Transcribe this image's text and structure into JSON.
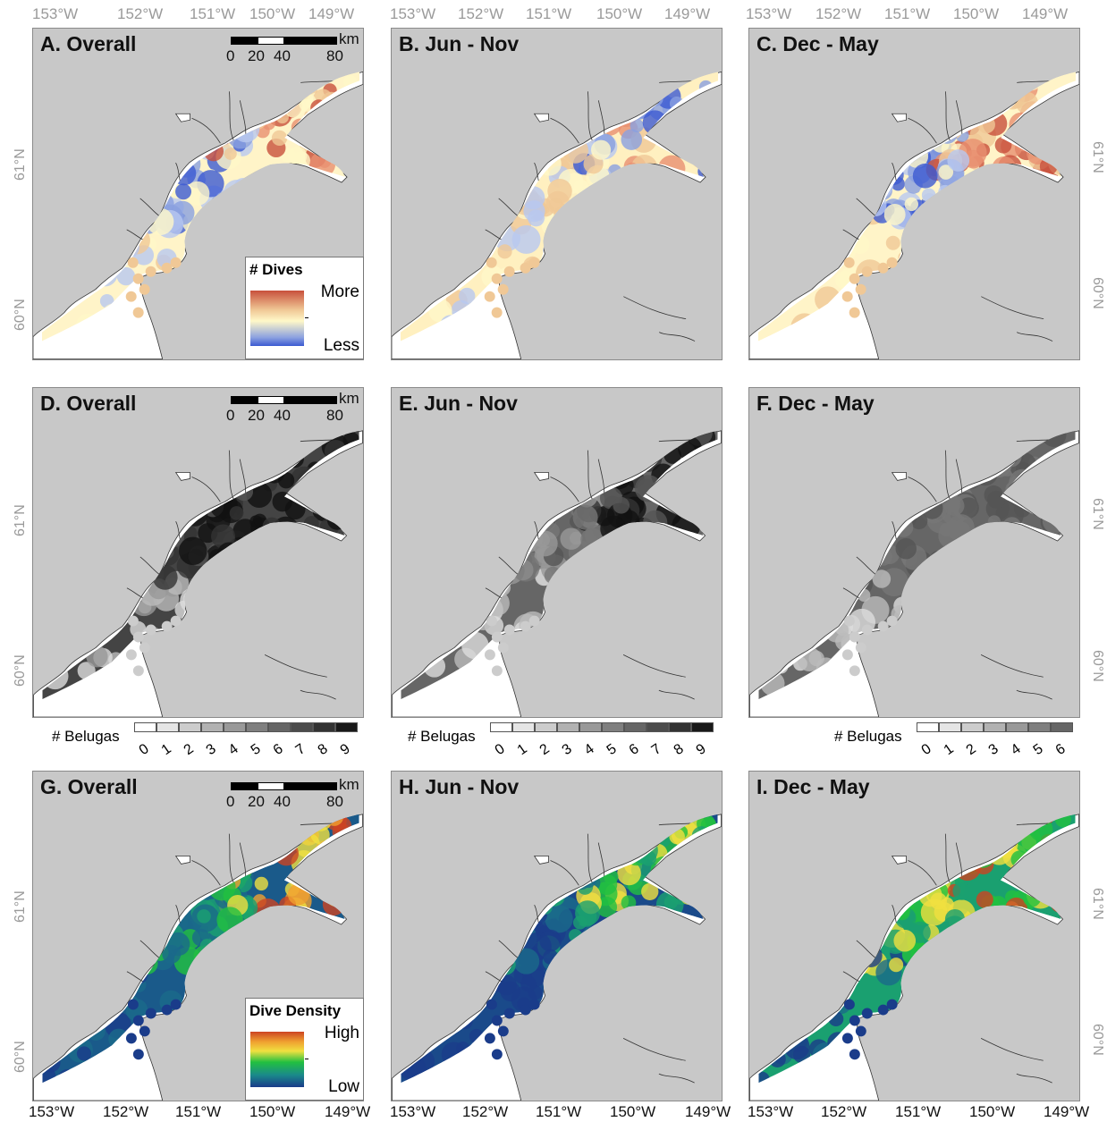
{
  "longitude_labels": [
    "153°W",
    "152°W",
    "151°W",
    "150°W",
    "149°W"
  ],
  "latitude_labels": [
    "61°N",
    "60°N"
  ],
  "panels": [
    {
      "title": "A. Overall",
      "style": "dives",
      "scale": true
    },
    {
      "title": "B. Jun - Nov",
      "style": "dives_b",
      "scale": false
    },
    {
      "title": "C. Dec - May",
      "style": "dives",
      "scale": false
    },
    {
      "title": "D. Overall",
      "style": "belugas_overall",
      "scale": true
    },
    {
      "title": "E. Jun - Nov",
      "style": "belugas_b",
      "scale": false
    },
    {
      "title": "F. Dec - May",
      "style": "belugas_c",
      "scale": false
    },
    {
      "title": "G. Overall",
      "style": "density",
      "scale": true
    },
    {
      "title": "H. Jun - Nov",
      "style": "density_b",
      "scale": false
    },
    {
      "title": "I. Dec - May",
      "style": "density_c",
      "scale": false
    }
  ],
  "scale_bar": {
    "unit": "km",
    "ticks": [
      "0",
      "20",
      "40",
      "80"
    ]
  },
  "dives_legend": {
    "title": "# Dives",
    "high": "More",
    "low": "Less",
    "colors": [
      "#c8503c",
      "#f0c896",
      "#fff8c8",
      "#8aa0e0",
      "#3c5ad2"
    ]
  },
  "density_legend": {
    "title": "Dive Density",
    "high": "High",
    "low": "Low",
    "colors": [
      "#cc4422",
      "#f0e040",
      "#22c040",
      "#1a8a8a",
      "#1a3c8a"
    ]
  },
  "beluga_legends": [
    {
      "title": "# Belugas",
      "values": [
        "0",
        "1",
        "2",
        "3",
        "4",
        "5",
        "6",
        "7",
        "8",
        "9"
      ]
    },
    {
      "title": "# Belugas",
      "values": [
        "0",
        "1",
        "2",
        "3",
        "4",
        "5",
        "6",
        "7",
        "8",
        "9"
      ]
    },
    {
      "title": "# Belugas",
      "values": [
        "0",
        "1",
        "2",
        "3",
        "4",
        "5",
        "6"
      ]
    }
  ],
  "colors": {
    "land": "#c8c8c8",
    "water": "#ffffff",
    "frame": "#8a8a8a"
  }
}
